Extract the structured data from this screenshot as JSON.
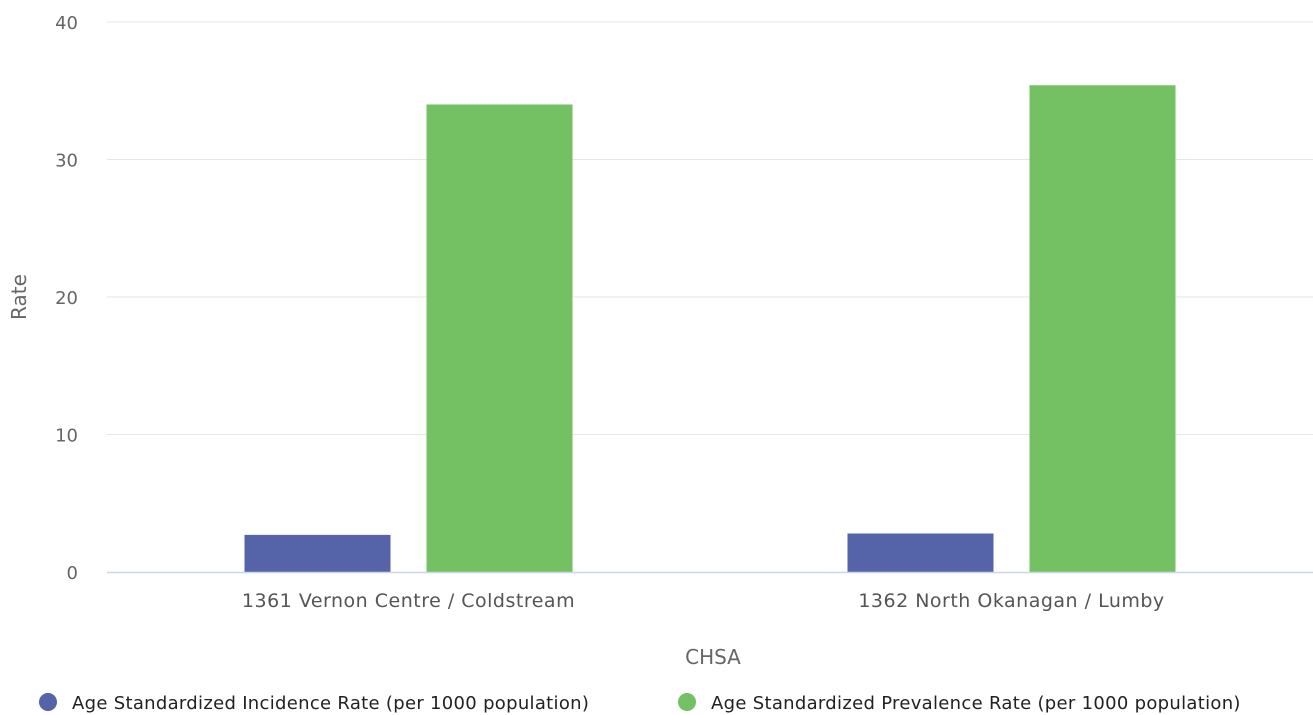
{
  "chart_data": {
    "type": "bar",
    "title": "",
    "xlabel": "CHSA",
    "ylabel": "Rate",
    "ylim": [
      0,
      40
    ],
    "yticks": [
      0,
      10,
      20,
      30,
      40
    ],
    "grid": true,
    "legend_position": "bottom",
    "categories": [
      "1361 Vernon Centre / Coldstream",
      "1362 North Okanagan / Lumby"
    ],
    "series": [
      {
        "name": "Age Standardized Incidence Rate (per 1000 population)",
        "color": "#5563a8",
        "values": [
          2.7,
          2.8
        ]
      },
      {
        "name": "Age Standardized Prevalence Rate (per 1000 population)",
        "color": "#74c163",
        "values": [
          34.0,
          35.4
        ]
      }
    ]
  }
}
